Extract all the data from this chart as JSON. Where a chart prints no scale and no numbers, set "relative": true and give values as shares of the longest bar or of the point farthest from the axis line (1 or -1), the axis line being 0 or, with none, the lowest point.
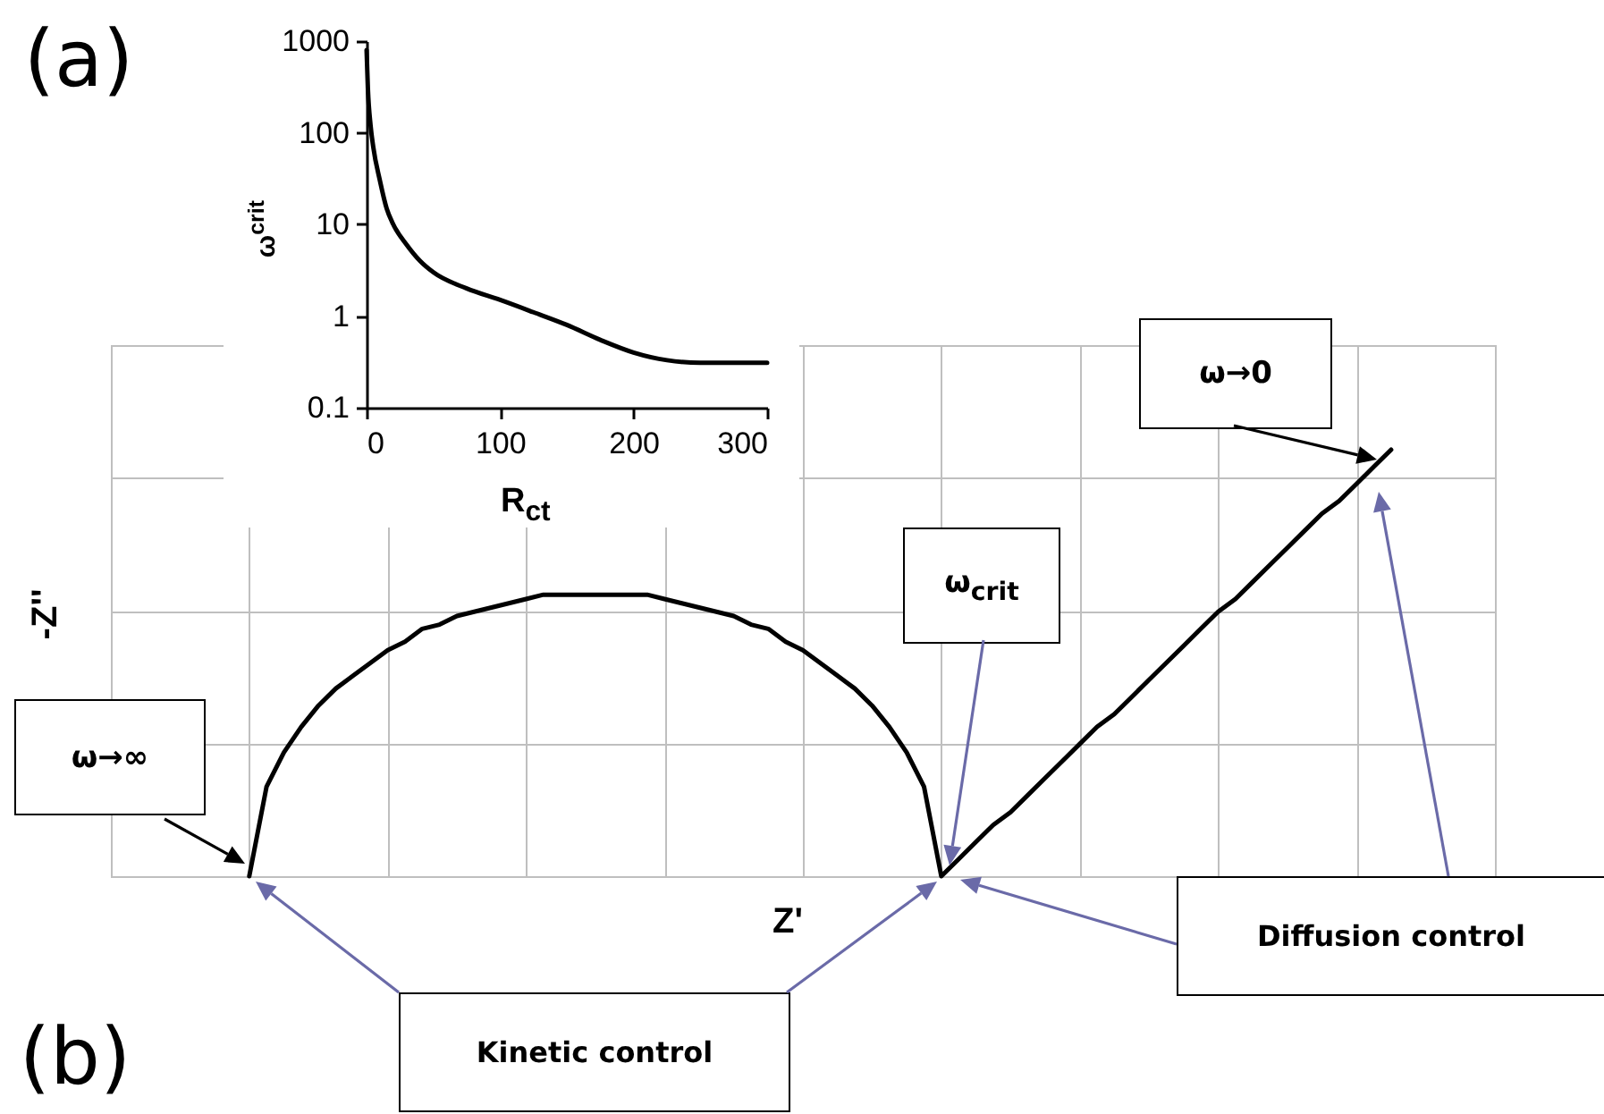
{
  "chart_data": [
    {
      "type": "line",
      "xlabel": "R$_{ct}$",
      "ylabel": "ω$^{crit}$",
      "annotations": [
        "(a)"
      ],
      "x": [
        0,
        1,
        3,
        5,
        10,
        15,
        20,
        30,
        40,
        50,
        75,
        100,
        125,
        150,
        175,
        200,
        225,
        250,
        300
      ],
      "series": [
        {
          "color": "#000000",
          "values": [
            800,
            300,
            120,
            70,
            30,
            15,
            10,
            6,
            4,
            3,
            2,
            1.5,
            1.1,
            0.8,
            0.55,
            0.4,
            0.33,
            0.31,
            0.31
          ]
        }
      ],
      "xlim": [
        0,
        300
      ],
      "xticks": [
        0,
        100,
        200,
        300
      ],
      "ylim": [
        0.1,
        1000
      ],
      "yticks": [
        0.1,
        1,
        10,
        100,
        1000
      ],
      "log": true
    },
    {
      "type": "line",
      "relative": true,
      "xlabel": "Z'",
      "ylabel": "-Z''",
      "grid": true,
      "annotations": [
        "(b)",
        "ω→∞",
        "ω$_{crit}$",
        "ω→0",
        "Kinetic control",
        "Diffusion control"
      ],
      "categories": [
        null,
        null,
        null,
        null,
        null,
        null,
        null,
        null,
        null,
        null,
        null,
        null,
        null,
        null,
        null,
        null,
        null,
        null,
        null,
        null,
        null,
        null,
        null,
        null,
        null,
        null,
        null,
        null,
        null,
        null,
        null,
        null,
        null,
        null,
        null,
        null,
        null,
        null,
        null,
        null,
        null,
        null,
        null,
        null,
        null,
        null,
        null,
        null,
        null,
        null,
        null,
        null,
        null,
        null,
        null,
        null,
        null,
        null,
        null,
        null,
        null,
        null,
        null,
        null,
        null,
        null,
        null,
        null,
        null,
        null,
        null,
        null,
        null,
        null,
        null,
        null,
        null,
        null,
        null,
        null,
        null
      ],
      "series": [
        {
          "color": "#000000",
          "values": [
            null,
            null,
            null,
            null,
            null,
            null,
            null,
            null,
            0,
            0.21,
            0.29,
            0.35,
            0.4,
            0.44,
            0.47,
            0.5,
            0.53,
            0.55,
            0.58,
            0.59,
            0.61,
            0.62,
            0.63,
            0.64,
            0.65,
            0.66,
            0.66,
            0.66,
            0.66,
            0.66,
            0.66,
            0.66,
            0.65,
            0.64,
            0.63,
            0.62,
            0.61,
            0.59,
            0.58,
            0.55,
            0.53,
            0.5,
            0.47,
            0.44,
            0.4,
            0.35,
            0.29,
            0.21,
            0,
            0.04,
            0.08,
            0.12,
            0.15,
            0.19,
            0.23,
            0.27,
            0.31,
            0.35,
            0.38,
            0.42,
            0.46,
            0.5,
            0.54,
            0.58,
            0.62,
            0.65,
            0.69,
            0.73,
            0.77,
            0.81,
            0.85,
            0.88,
            0.92,
            0.96,
            1,
            null,
            null,
            null,
            null,
            null,
            null
          ]
        }
      ]
    }
  ]
}
